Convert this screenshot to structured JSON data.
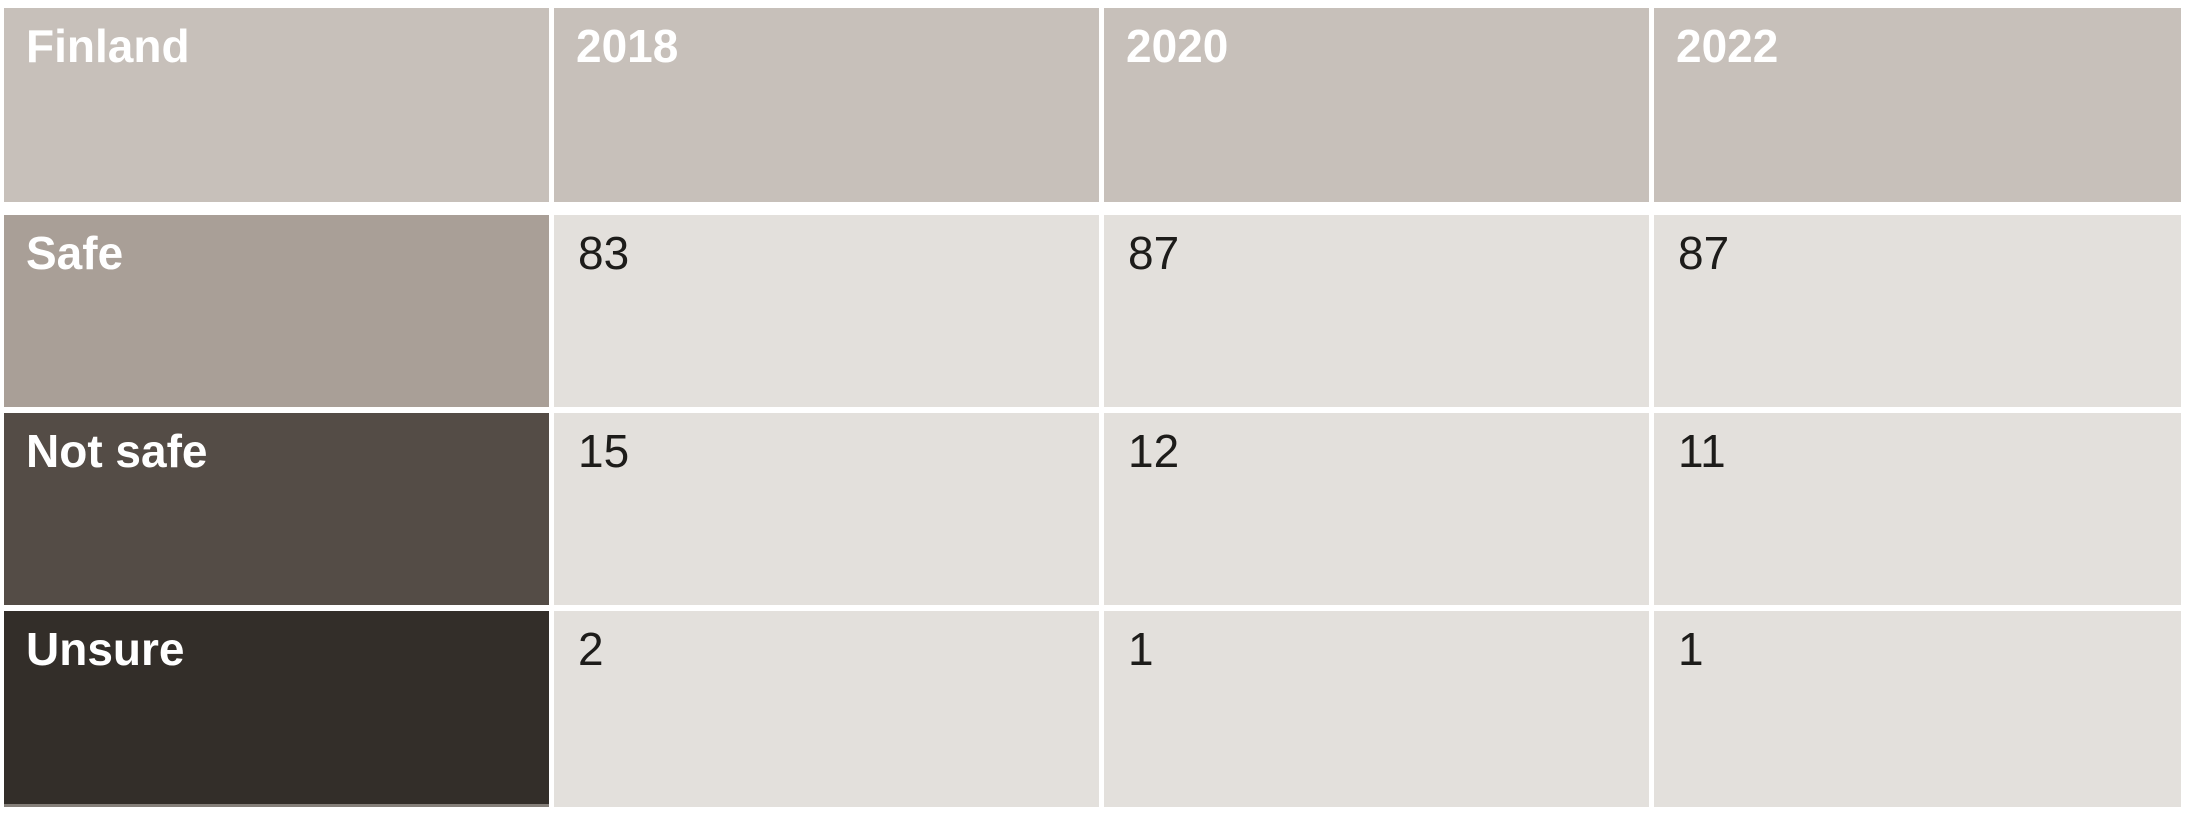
{
  "table": {
    "title_cell": "Finland",
    "columns": [
      "2018",
      "2020",
      "2022"
    ],
    "rows": [
      {
        "label": "Safe",
        "values": [
          "83",
          "87",
          "87"
        ]
      },
      {
        "label": "Not safe",
        "values": [
          "15",
          "12",
          "11"
        ]
      },
      {
        "label": "Unsure",
        "values": [
          "2",
          "1",
          "1"
        ]
      }
    ]
  },
  "chart_data": {
    "type": "table",
    "title": "Finland",
    "categories": [
      "2018",
      "2020",
      "2022"
    ],
    "series": [
      {
        "name": "Safe",
        "values": [
          83,
          87,
          87
        ]
      },
      {
        "name": "Not safe",
        "values": [
          15,
          12,
          11
        ]
      },
      {
        "name": "Unsure",
        "values": [
          2,
          1,
          1
        ]
      }
    ]
  },
  "colors": {
    "header_bg": "#c7c0ba",
    "row_safe_bg": "#a99f97",
    "row_notsafe_bg": "#544c46",
    "row_unsure_bg": "#332e29",
    "cell_bg": "#e3e0dc",
    "header_text": "#ffffff",
    "value_text": "#1d1c1a"
  }
}
